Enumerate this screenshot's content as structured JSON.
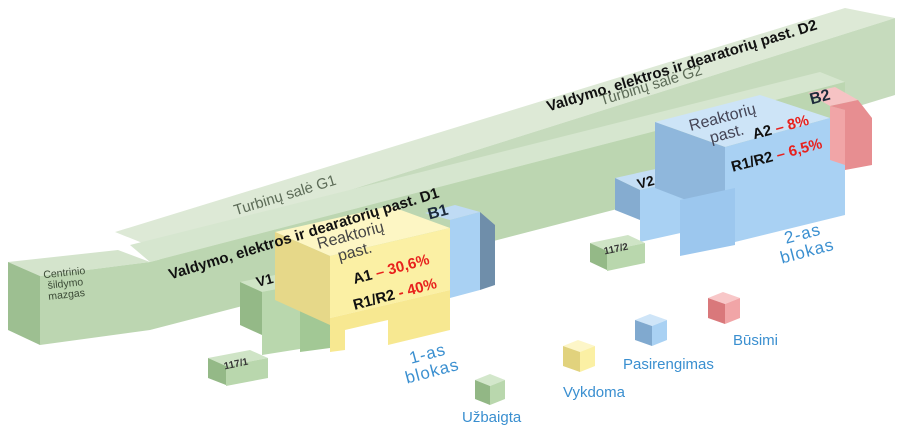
{
  "turbine_hall_g1": "Turbinų salė G1",
  "turbine_hall_g2": "Turbinų salė G2",
  "control_building_d1": "Valdymo, elektros ir dearatorių past. D1",
  "control_building_d2": "Valdymo, elektros ir dearatorių past. D2",
  "central_heating": "Centrinio šildymo mazgas",
  "unit1": {
    "reactor_label": "Reaktorių past.",
    "a1_label": "A1",
    "a1_value": "– 30,6%",
    "r_label": "R1/R2",
    "r_value": "- 40%",
    "b_label": "B1",
    "v_label": "V1",
    "code": "117/1",
    "block_label": "1-as blokas"
  },
  "unit2": {
    "reactor_label": "Reaktorių past.",
    "a2_label": "A2",
    "a2_value": "– 8%",
    "r_label": "R1/R2",
    "r_value": "– 6,5%",
    "b_label": "B2",
    "v_label": "V2",
    "code": "117/2",
    "block_label": "2-as blokas"
  },
  "legend": {
    "completed": "Užbaigta",
    "in_progress": "Vykdoma",
    "preparation": "Pasirengimas",
    "future": "Būsimi"
  },
  "colors": {
    "completed": "#b9d7ad",
    "in_progress": "#fbf0a4",
    "preparation": "#a9d1f3",
    "future": "#f1a5a7",
    "label_blue": "#3a8fd0",
    "value_red": "#e8211d"
  }
}
